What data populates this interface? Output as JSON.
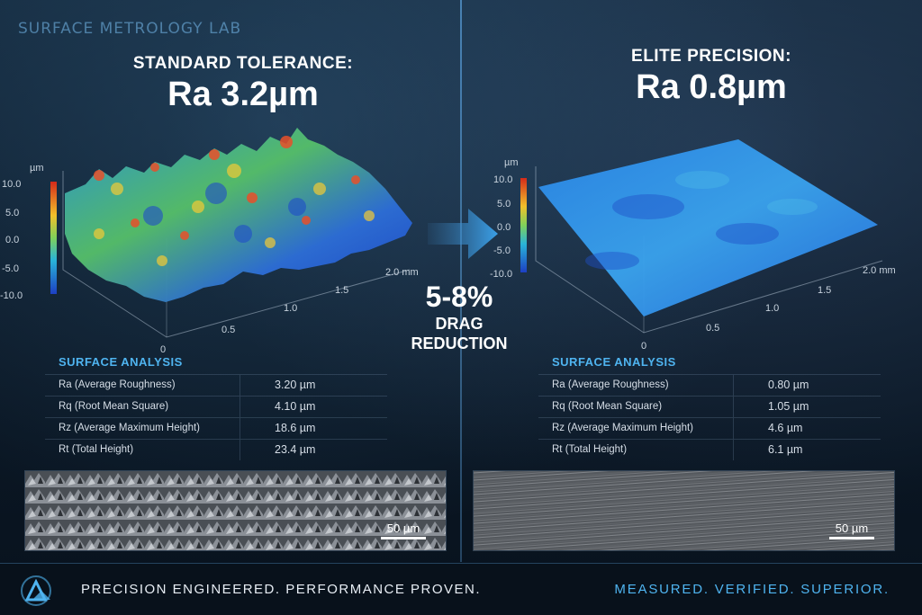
{
  "lab_sign": "SURFACE METROLOGY LAB",
  "left": {
    "subtitle": "STANDARD TOLERANCE:",
    "value": "Ra 3.2µm",
    "plot": {
      "unit": "µm",
      "scale_ticks": [
        "10.0",
        "5.0",
        "0.0",
        "-5.0",
        "-10.0"
      ],
      "axis_ticks": [
        "0",
        "0.5",
        "1.0",
        "1.5",
        "2.0 mm"
      ]
    },
    "analysis": {
      "title": "SURFACE ANALYSIS",
      "rows": [
        {
          "label": "Ra (Average Roughness)",
          "value": "3.20 µm"
        },
        {
          "label": "Rq (Root Mean Square)",
          "value": "4.10 µm"
        },
        {
          "label": "Rz (Average Maximum Height)",
          "value": "18.6 µm"
        },
        {
          "label": "Rt (Total Height)",
          "value": "23.4 µm"
        }
      ]
    },
    "scale_bar": "50 µm"
  },
  "right": {
    "subtitle": "ELITE PRECISION:",
    "value": "Ra 0.8µm",
    "plot": {
      "unit": "µm",
      "scale_ticks": [
        "10.0",
        "5.0",
        "0.0",
        "-5.0",
        "-10.0"
      ],
      "axis_ticks": [
        "0",
        "0.5",
        "1.0",
        "1.5",
        "2.0 mm"
      ]
    },
    "analysis": {
      "title": "SURFACE ANALYSIS",
      "rows": [
        {
          "label": "Ra (Average Roughness)",
          "value": "0.80 µm"
        },
        {
          "label": "Rq (Root Mean Square)",
          "value": "1.05 µm"
        },
        {
          "label": "Rz (Average Maximum Height)",
          "value": "4.6 µm"
        },
        {
          "label": "Rt (Total Height)",
          "value": "6.1 µm"
        }
      ]
    },
    "scale_bar": "50 µm"
  },
  "center": {
    "percent": "5-8%",
    "line1": "DRAG",
    "line2": "REDUCTION"
  },
  "footer": {
    "left_tagline": "PRECISION ENGINEERED. PERFORMANCE PROVEN.",
    "right_tagline": "MEASURED. VERIFIED. SUPERIOR."
  },
  "colors": {
    "accent": "#4fb4f0",
    "background": "#0b1623",
    "rough_high": "#e0401c",
    "rough_low": "#1b46c8",
    "smooth_surface": "#2a86e8"
  },
  "icons": [
    "logo-icon",
    "arrow-right-icon"
  ]
}
